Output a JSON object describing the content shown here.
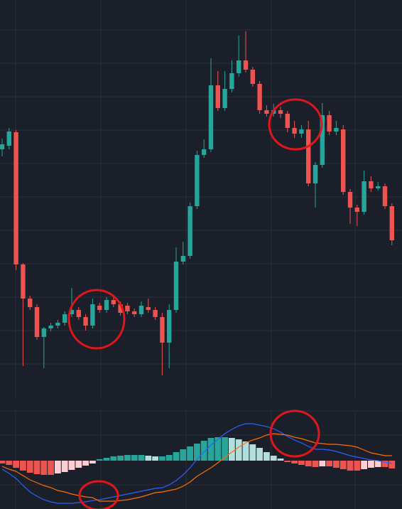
{
  "chart_data": [
    {
      "type": "candlestick",
      "ylim": [
        40,
        600
      ],
      "up_color": "#26a69a",
      "down_color": "#ef5350",
      "open": [
        390,
        395,
        414,
        228,
        180,
        168,
        126,
        138,
        142,
        146,
        158,
        164,
        154,
        142,
        170,
        164,
        178,
        172,
        170,
        162,
        158,
        168,
        164,
        154,
        118,
        164,
        232,
        240,
        310,
        382,
        390,
        480,
        448,
        475,
        497,
        515,
        502,
        482,
        445,
        440,
        445,
        440,
        420,
        412,
        418,
        342,
        368,
        438,
        415,
        418,
        330,
        308,
        302,
        345,
        335,
        338,
        310
      ],
      "high": [
        405,
        420,
        417,
        230,
        184,
        172,
        140,
        146,
        150,
        162,
        195,
        168,
        158,
        180,
        174,
        182,
        182,
        176,
        174,
        166,
        176,
        180,
        168,
        160,
        172,
        252,
        260,
        315,
        388,
        404,
        518,
        500,
        500,
        515,
        550,
        556,
        506,
        486,
        452,
        454,
        450,
        444,
        430,
        424,
        430,
        372,
        455,
        444,
        430,
        424,
        334,
        312,
        360,
        352,
        344,
        342,
        314
      ],
      "low": [
        380,
        390,
        220,
        85,
        164,
        122,
        82,
        134,
        138,
        142,
        154,
        150,
        135,
        138,
        160,
        160,
        168,
        156,
        158,
        154,
        154,
        160,
        150,
        72,
        82,
        160,
        228,
        236,
        306,
        378,
        386,
        444,
        444,
        470,
        492,
        498,
        478,
        440,
        436,
        436,
        434,
        414,
        406,
        406,
        338,
        308,
        364,
        410,
        410,
        326,
        285,
        282,
        298,
        330,
        332,
        306,
        255
      ],
      "close": [
        397,
        415,
        228,
        180,
        168,
        126,
        138,
        142,
        146,
        158,
        164,
        154,
        142,
        172,
        164,
        178,
        172,
        160,
        162,
        158,
        170,
        164,
        154,
        118,
        164,
        232,
        240,
        310,
        382,
        390,
        480,
        448,
        475,
        497,
        515,
        502,
        482,
        445,
        440,
        445,
        440,
        420,
        412,
        418,
        342,
        368,
        438,
        415,
        420,
        330,
        308,
        302,
        345,
        335,
        338,
        310,
        262
      ]
    },
    {
      "type": "macd",
      "ylim": [
        -68,
        70
      ],
      "histogram": [
        -4,
        -6,
        -10,
        -14,
        -17,
        -19,
        -20,
        -20,
        -18,
        -16,
        -13,
        -10,
        -7,
        -4,
        2,
        4,
        6,
        7,
        8,
        8,
        8,
        7,
        6,
        6,
        8,
        12,
        16,
        20,
        24,
        28,
        32,
        33,
        33,
        32,
        30,
        27,
        23,
        18,
        12,
        7,
        3,
        -2,
        -4,
        -6,
        -8,
        -9,
        -8,
        -8,
        -10,
        -12,
        -14,
        -14,
        -12,
        -10,
        -9,
        -9,
        -11
      ],
      "histogram_colors": {
        "up_grow": "#26a69a",
        "up_fall": "#b2dfdb",
        "down_grow": "#ef5350",
        "down_fall": "#ffcdd2"
      },
      "series": [
        {
          "color": "#2962ff",
          "values": [
            -12,
            -18,
            -25,
            -35,
            -44,
            -50,
            -55,
            -58,
            -60,
            -60,
            -60,
            -59,
            -58,
            -56,
            -55,
            -53,
            -51,
            -49,
            -47,
            -45,
            -43,
            -41,
            -39,
            -38,
            -34,
            -28,
            -20,
            -10,
            2,
            12,
            22,
            30,
            38,
            44,
            49,
            52,
            52,
            50,
            48,
            45,
            40,
            34,
            29,
            25,
            20,
            16,
            16,
            15,
            13,
            10,
            7,
            5,
            3,
            1,
            0,
            -2,
            -4
          ]
        },
        {
          "color": "#ff6d00",
          "values": [
            -8,
            -12,
            -15,
            -21,
            -27,
            -31,
            -35,
            -38,
            -42,
            -44,
            -47,
            -49,
            -51,
            -52,
            -57,
            -57,
            -57,
            -56,
            -55,
            -53,
            -51,
            -48,
            -45,
            -44,
            -42,
            -40,
            -36,
            -30,
            -22,
            -16,
            -10,
            -3,
            5,
            12,
            19,
            25,
            29,
            32,
            36,
            38,
            37,
            36,
            33,
            31,
            28,
            25,
            24,
            23,
            23,
            22,
            21,
            19,
            15,
            11,
            9,
            7,
            7
          ]
        }
      ]
    }
  ]
}
